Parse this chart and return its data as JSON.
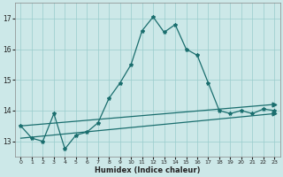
{
  "xlabel": "Humidex (Indice chaleur)",
  "background_color": "#cce8e8",
  "grid_color": "#99cccc",
  "line_color": "#1a6e6e",
  "xlim": [
    -0.5,
    23.5
  ],
  "ylim": [
    12.5,
    17.5
  ],
  "yticks": [
    13,
    14,
    15,
    16,
    17
  ],
  "xticks": [
    0,
    1,
    2,
    3,
    4,
    5,
    6,
    7,
    8,
    9,
    10,
    11,
    12,
    13,
    14,
    15,
    16,
    17,
    18,
    19,
    20,
    21,
    22,
    23
  ],
  "main_series_x": [
    0,
    1,
    2,
    3,
    4,
    5,
    6,
    7,
    8,
    9,
    10,
    11,
    12,
    13,
    14,
    15,
    16,
    17,
    18,
    19,
    20,
    21,
    22,
    23
  ],
  "main_series_y": [
    13.5,
    13.1,
    13.0,
    13.9,
    12.75,
    13.2,
    13.3,
    13.6,
    14.4,
    14.9,
    15.5,
    16.6,
    17.05,
    16.55,
    16.8,
    16.0,
    15.8,
    14.9,
    14.0,
    13.9,
    14.0,
    13.9,
    14.05,
    14.0
  ],
  "lower_line_x": [
    0,
    23
  ],
  "lower_line_y": [
    13.1,
    13.9
  ],
  "upper_line_x": [
    0,
    23
  ],
  "upper_line_y": [
    13.5,
    14.2
  ],
  "figwidth": 3.2,
  "figheight": 2.0,
  "dpi": 100
}
